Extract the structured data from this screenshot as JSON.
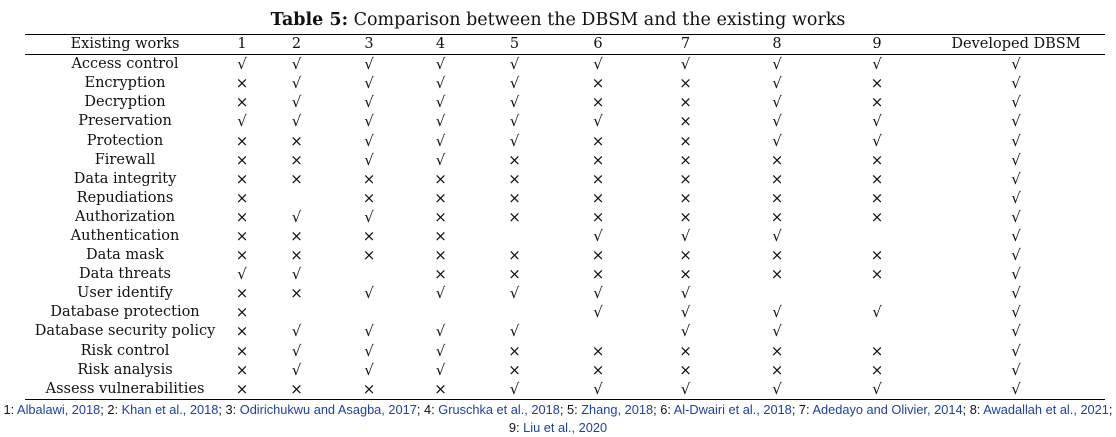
{
  "caption": {
    "label": "Table 5:",
    "text": "Comparison between the DBSM and the existing works"
  },
  "table": {
    "headers": [
      "Existing works",
      "1",
      "2",
      "3",
      "4",
      "5",
      "6",
      "7",
      "8",
      "9",
      "Developed DBSM"
    ],
    "rows": [
      {
        "label": "Access control",
        "marks": [
          "√",
          "√",
          "√",
          "√",
          "√",
          "√",
          "√",
          "√",
          "√",
          "√"
        ]
      },
      {
        "label": "Encryption",
        "marks": [
          "×",
          "√",
          "√",
          "√",
          "√",
          "×",
          "×",
          "√",
          "×",
          "√"
        ]
      },
      {
        "label": "Decryption",
        "marks": [
          "×",
          "√",
          "√",
          "√",
          "√",
          "×",
          "×",
          "√",
          "×",
          "√"
        ]
      },
      {
        "label": "Preservation",
        "marks": [
          "√",
          "√",
          "√",
          "√",
          "√",
          "√",
          "×",
          "√",
          "√",
          "√"
        ]
      },
      {
        "label": "Protection",
        "marks": [
          "×",
          "×",
          "√",
          "√",
          "√",
          "×",
          "×",
          "√",
          "√",
          "√"
        ]
      },
      {
        "label": "Firewall",
        "marks": [
          "×",
          "×",
          "√",
          "√",
          "×",
          "×",
          "×",
          "×",
          "×",
          "√"
        ]
      },
      {
        "label": "Data integrity",
        "marks": [
          "×",
          "×",
          "×",
          "×",
          "×",
          "×",
          "×",
          "×",
          "×",
          "√"
        ]
      },
      {
        "label": "Repudiations",
        "marks": [
          "×",
          "",
          "×",
          "×",
          "×",
          "×",
          "×",
          "×",
          "×",
          "√"
        ]
      },
      {
        "label": "Authorization",
        "marks": [
          "×",
          "√",
          "√",
          "×",
          "×",
          "×",
          "×",
          "×",
          "×",
          "√"
        ]
      },
      {
        "label": "Authentication",
        "marks": [
          "×",
          "×",
          "×",
          "×",
          "",
          "√",
          "√",
          "√",
          "",
          "√"
        ]
      },
      {
        "label": "Data mask",
        "marks": [
          "×",
          "×",
          "×",
          "×",
          "×",
          "×",
          "×",
          "×",
          "×",
          "√"
        ]
      },
      {
        "label": "Data threats",
        "marks": [
          "√",
          "√",
          "",
          "×",
          "×",
          "×",
          "×",
          "×",
          "×",
          "√"
        ]
      },
      {
        "label": "User identify",
        "marks": [
          "×",
          "×",
          "√",
          "√",
          "√",
          "√",
          "√",
          "",
          "",
          "√"
        ]
      },
      {
        "label": "Database protection",
        "marks": [
          "×",
          "",
          "",
          "",
          "",
          "√",
          "√",
          "√",
          "√",
          "√"
        ]
      },
      {
        "label": "Database security policy",
        "marks": [
          "×",
          "√",
          "√",
          "√",
          "√",
          "",
          "√",
          "√",
          "",
          "√"
        ]
      },
      {
        "label": "Risk control",
        "marks": [
          "×",
          "√",
          "√",
          "√",
          "×",
          "×",
          "×",
          "×",
          "×",
          "√"
        ]
      },
      {
        "label": "Risk analysis",
        "marks": [
          "×",
          "√",
          "√",
          "√",
          "×",
          "×",
          "×",
          "×",
          "×",
          "√"
        ]
      },
      {
        "label": "Assess vulnerabilities",
        "marks": [
          "×",
          "×",
          "×",
          "×",
          "√",
          "√",
          "√",
          "√",
          "√",
          "√"
        ]
      }
    ]
  },
  "footnote": {
    "parts": [
      {
        "text": "1: ",
        "link": false
      },
      {
        "text": "Albalawi, 2018",
        "link": true
      },
      {
        "text": "; 2: ",
        "link": false
      },
      {
        "text": "Khan et al., 2018",
        "link": true
      },
      {
        "text": "; 3: ",
        "link": false
      },
      {
        "text": "Odirichukwu and Asagba, 2017",
        "link": true
      },
      {
        "text": "; 4: ",
        "link": false
      },
      {
        "text": "Gruschka et al., 2018",
        "link": true
      },
      {
        "text": "; 5: ",
        "link": false
      },
      {
        "text": "Zhang, 2018",
        "link": true
      },
      {
        "text": "; 6: ",
        "link": false
      },
      {
        "text": "Al-Dwairi et al., 2018",
        "link": true
      },
      {
        "text": "; 7: ",
        "link": false
      },
      {
        "text": "Adedayo and Olivier, 2014",
        "link": true
      },
      {
        "text": "; 8: ",
        "link": false
      },
      {
        "text": "Awadallah et al., 2021",
        "link": true
      },
      {
        "text": "; 9: ",
        "link": false
      },
      {
        "text": "Liu et al., 2020",
        "link": true
      }
    ]
  },
  "colors": {
    "link": "#1f3fa0",
    "text": "#111111",
    "rule": "#000000"
  }
}
